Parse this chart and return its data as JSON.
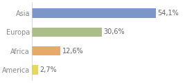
{
  "categories": [
    "Asia",
    "Europa",
    "Africa",
    "America"
  ],
  "values": [
    54.1,
    30.6,
    12.6,
    2.7
  ],
  "labels": [
    "54,1%",
    "30,6%",
    "12,6%",
    "2,7%"
  ],
  "bar_colors": [
    "#7b96c8",
    "#abbe8a",
    "#e8a868",
    "#e8d855"
  ],
  "background_color": "#ffffff",
  "xlim": [
    0,
    70
  ],
  "bar_height": 0.5,
  "label_fontsize": 7,
  "tick_fontsize": 7,
  "tick_color": "#888888",
  "label_color": "#666666"
}
